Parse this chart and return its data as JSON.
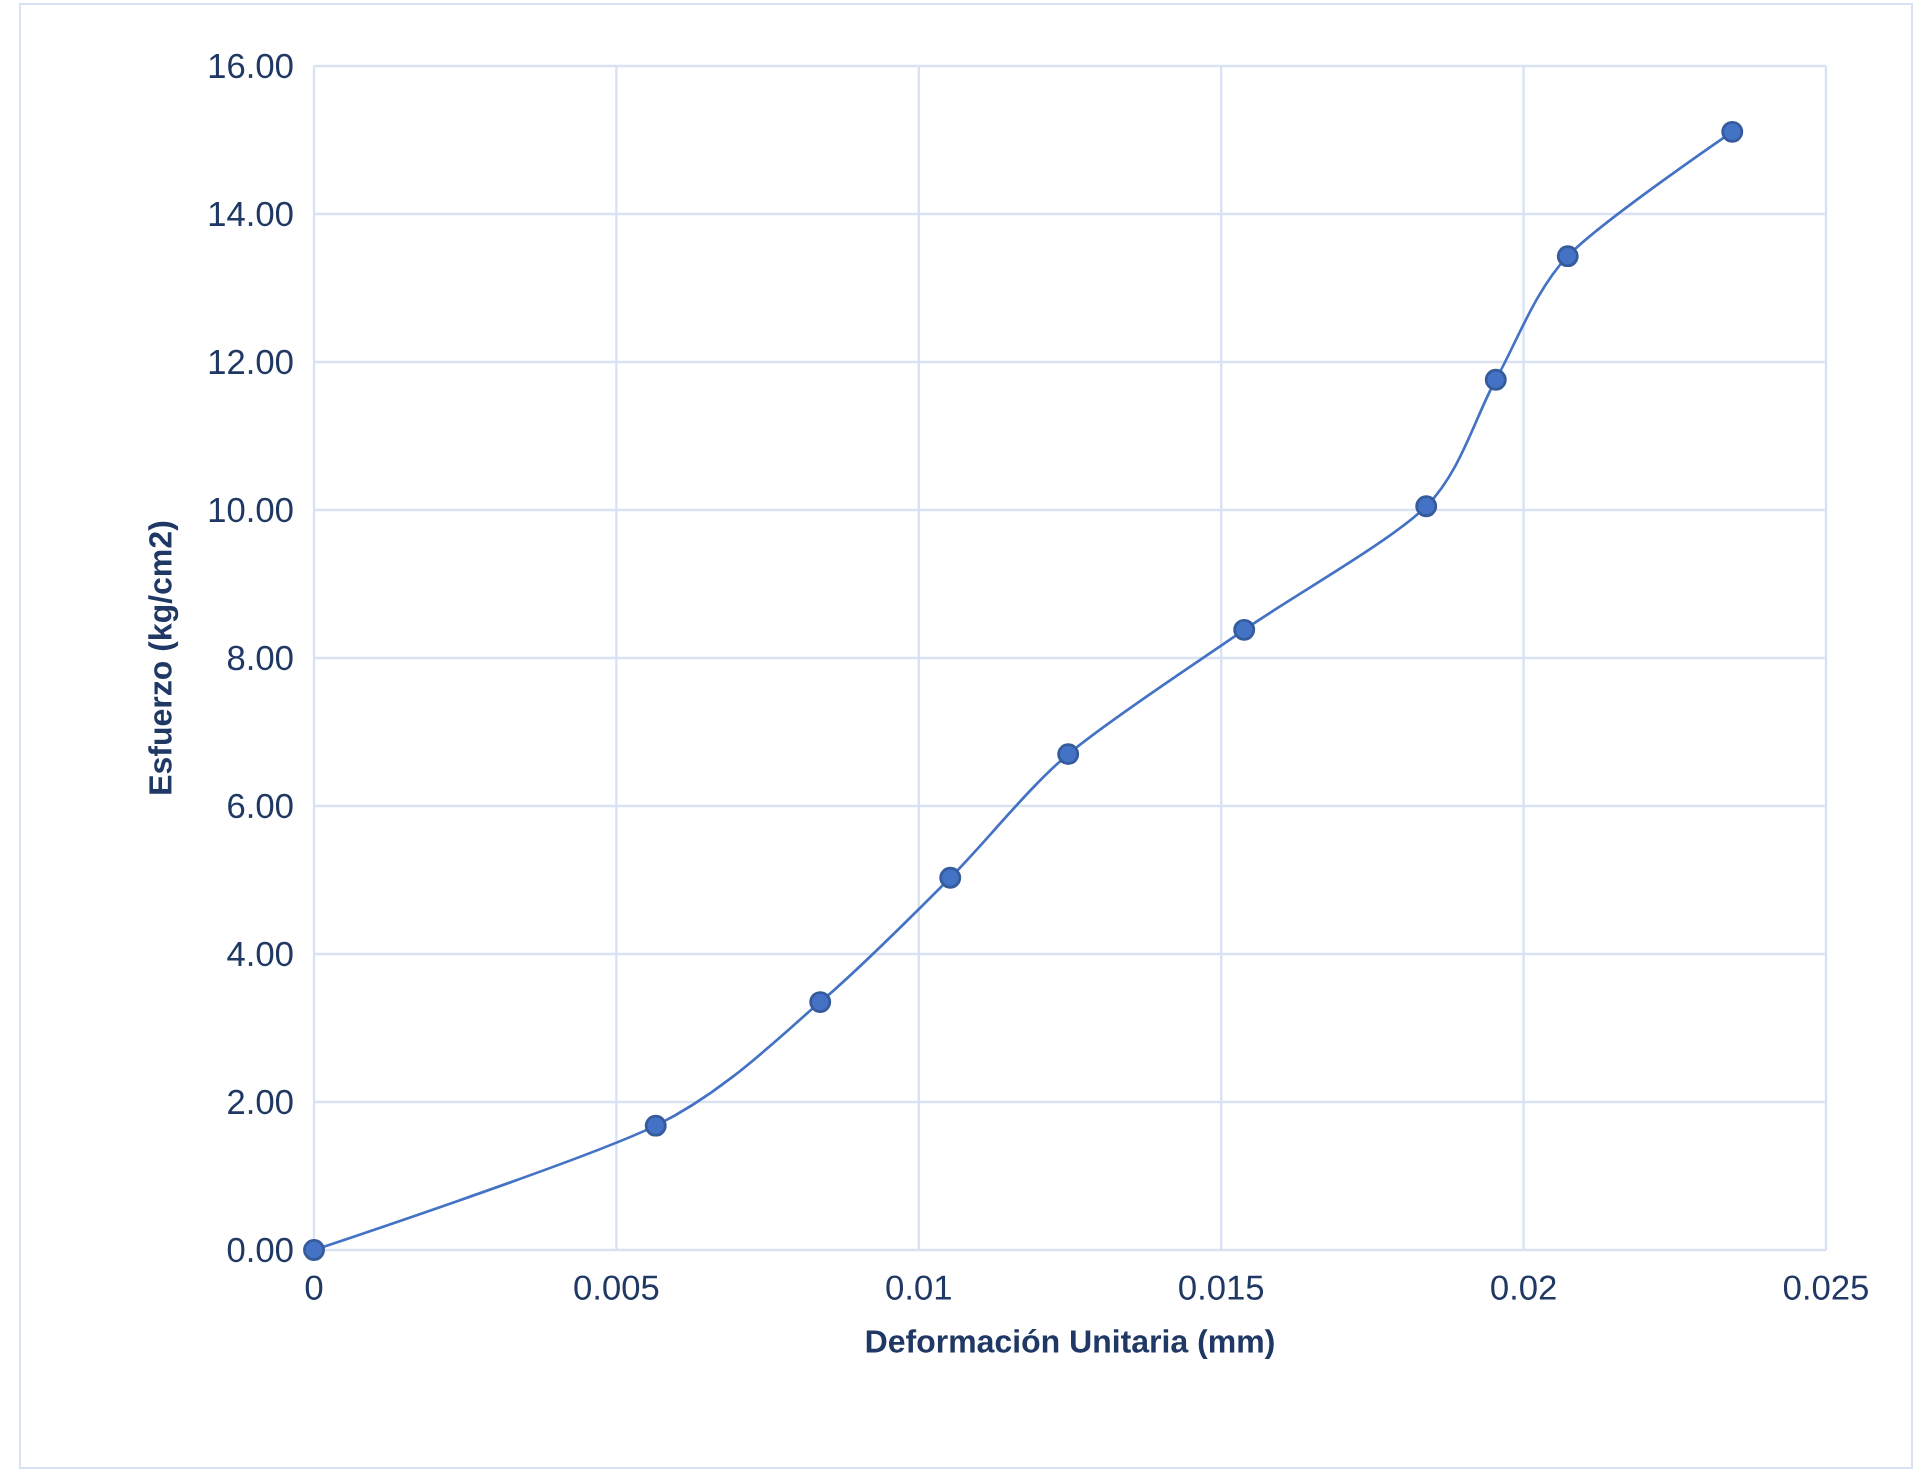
{
  "chart_data": {
    "type": "line",
    "xlabel": "Deformación Unitaria (mm)",
    "ylabel": "Esfuerzo (kg/cm2)",
    "x": [
      0,
      0.00565,
      0.00837,
      0.01052,
      0.01247,
      0.01538,
      0.01839,
      0.01954,
      0.02073,
      0.02345
    ],
    "series": [
      {
        "color": "#4472c4",
        "values": [
          0,
          1.68,
          3.35,
          5.03,
          6.7,
          8.38,
          10.05,
          11.76,
          13.43,
          15.11
        ]
      }
    ],
    "xlim": [
      0,
      0.025
    ],
    "xticks": [
      0,
      0.005,
      0.01,
      0.015,
      0.02,
      0.025
    ],
    "ylim": [
      0,
      16
    ],
    "yticks": [
      {
        "value": 0,
        "label": "0.00"
      },
      {
        "value": 2,
        "label": "2.00"
      },
      {
        "value": 4,
        "label": "4.00"
      },
      {
        "value": 6,
        "label": "6.00"
      },
      {
        "value": 8,
        "label": "8.00"
      },
      {
        "value": 10,
        "label": "10.00"
      },
      {
        "value": 12,
        "label": "12.00"
      },
      {
        "value": 14,
        "label": "14.00"
      },
      {
        "value": 16,
        "label": "16.00"
      }
    ],
    "grid": true,
    "marker": "circle",
    "line_style": "solid"
  }
}
